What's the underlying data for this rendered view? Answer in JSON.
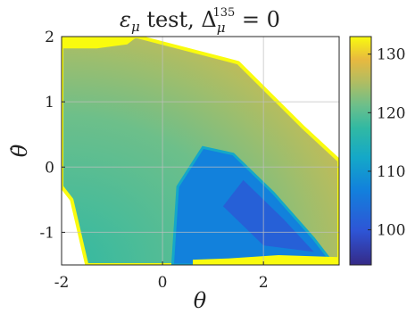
{
  "chart_data": {
    "type": "heatmap",
    "title_parts": {
      "base": "ε",
      "sub": "μ",
      "mid": " test, Δ",
      "sub2": "μ",
      "sup2": "135",
      "tail": " = 0"
    },
    "xlabel": "θ",
    "ylabel": "θ̇",
    "xlim": [
      -2,
      3.5
    ],
    "ylim": [
      -1.5,
      2
    ],
    "x_ticks": [
      -2,
      0,
      2
    ],
    "x_tick_labels": [
      "-2",
      "0",
      "2"
    ],
    "y_ticks": [
      -1,
      0,
      1,
      2
    ],
    "y_tick_labels": [
      "-1",
      "0",
      "1",
      "2"
    ],
    "grid": true,
    "colorbar": {
      "min": 94,
      "max": 133,
      "ticks": [
        100,
        110,
        120,
        130
      ],
      "tick_labels": [
        "100",
        "110",
        "120",
        "130"
      ],
      "colormap": "parula"
    },
    "colors": {
      "c94": "#352a87",
      "c100": "#2e55d6",
      "c107": "#1281dc",
      "c112": "#14a8c8",
      "c117": "#31b9a3",
      "c121": "#6dbf8a",
      "c125": "#b0bd62",
      "c129": "#e8b93f",
      "c133": "#f9fb0e",
      "grid": "#c0c0c0",
      "axis": "#262626"
    },
    "regions": {
      "valid_boundary": [
        [
          -2,
          2
        ],
        [
          -0.5,
          2
        ],
        [
          1.5,
          1.6
        ],
        [
          2.8,
          0.6
        ],
        [
          3.5,
          0.1
        ],
        [
          3.5,
          -1.5
        ],
        [
          -1.5,
          -1.5
        ],
        [
          -1.8,
          -0.5
        ],
        [
          -2,
          -0.3
        ]
      ],
      "basin_low": [
        [
          0.2,
          -1.5
        ],
        [
          0.3,
          -0.3
        ],
        [
          0.8,
          0.3
        ],
        [
          1.4,
          0.2
        ],
        [
          2.2,
          -0.4
        ],
        [
          3.0,
          -1.1
        ],
        [
          3.4,
          -1.5
        ]
      ],
      "basin_core": [
        [
          1.2,
          -0.6
        ],
        [
          1.6,
          -0.2
        ],
        [
          2.4,
          -0.8
        ],
        [
          3.0,
          -1.3
        ],
        [
          2.0,
          -1.2
        ]
      ],
      "top_yellow": [
        [
          -2,
          2
        ],
        [
          -0.5,
          2
        ],
        [
          -0.7,
          1.88
        ],
        [
          -1.3,
          1.82
        ],
        [
          -2,
          1.82
        ]
      ],
      "bottom_yellow": [
        [
          0.6,
          -1.5
        ],
        [
          3.5,
          -1.5
        ],
        [
          3.5,
          -1.38
        ],
        [
          2.3,
          -1.35
        ],
        [
          1.3,
          -1.4
        ],
        [
          0.6,
          -1.42
        ]
      ]
    }
  }
}
